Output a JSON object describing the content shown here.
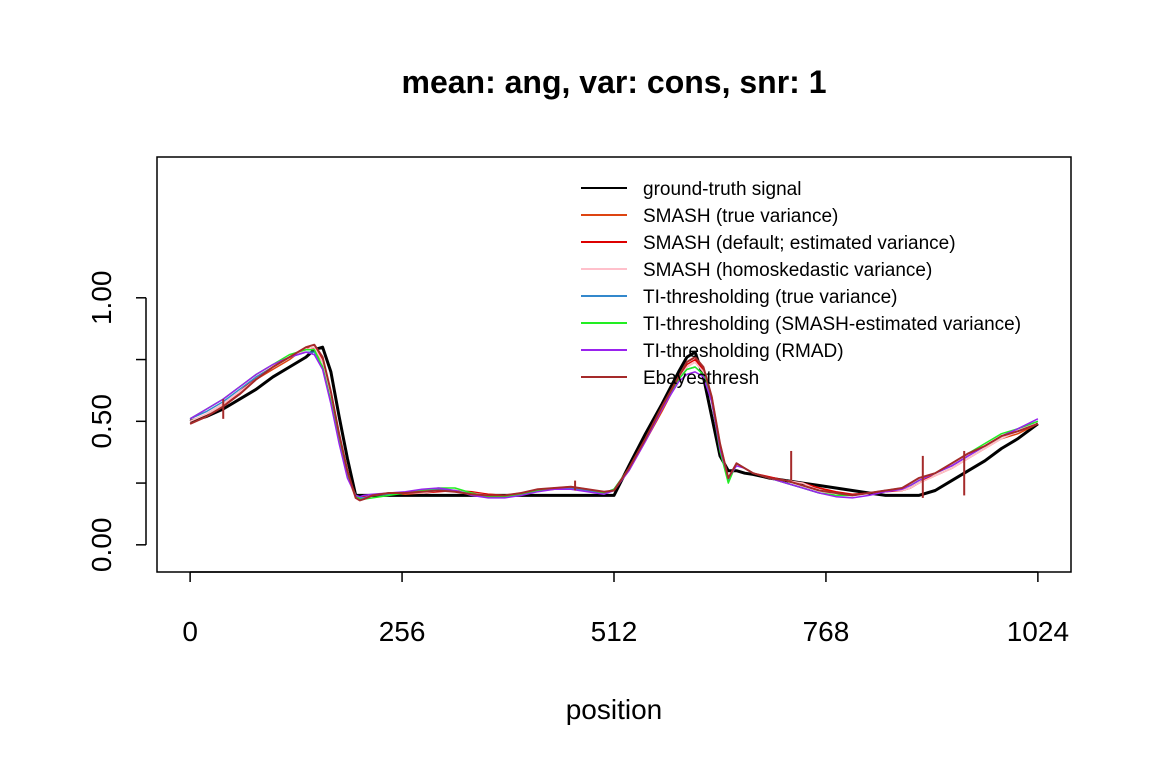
{
  "chart_data": {
    "type": "line",
    "title": "mean: ang, var: cons, snr: 1",
    "xlabel": "position",
    "ylabel": "",
    "xlim": [
      -40,
      1064
    ],
    "ylim": [
      -0.11,
      1.57
    ],
    "x_ticks": [
      0,
      256,
      512,
      768,
      1024
    ],
    "x_tick_labels": [
      "0",
      "256",
      "512",
      "768",
      "1024"
    ],
    "y_ticks": [
      0,
      0.25,
      0.5,
      0.75,
      1.0
    ],
    "y_tick_labels": [
      "0.00",
      "",
      "0.50",
      "",
      "1.00"
    ],
    "grid": false,
    "legend_position": "top-right",
    "x": [
      0,
      20,
      40,
      60,
      80,
      100,
      120,
      140,
      150,
      160,
      170,
      180,
      190,
      200,
      205,
      210,
      220,
      240,
      260,
      280,
      300,
      320,
      340,
      360,
      380,
      400,
      420,
      440,
      460,
      480,
      500,
      512,
      530,
      550,
      570,
      590,
      600,
      610,
      620,
      630,
      640,
      650,
      660,
      670,
      680,
      700,
      720,
      740,
      760,
      780,
      800,
      820,
      840,
      860,
      870,
      880,
      900,
      920,
      940,
      960,
      980,
      1000,
      1024
    ],
    "series": [
      {
        "name": "ground-truth signal",
        "color": "#000000",
        "width": 3,
        "values": [
          0.5,
          0.52,
          0.55,
          0.59,
          0.63,
          0.68,
          0.72,
          0.76,
          0.79,
          0.8,
          0.7,
          0.52,
          0.35,
          0.2,
          0.2,
          0.2,
          0.2,
          0.2,
          0.2,
          0.2,
          0.2,
          0.2,
          0.2,
          0.2,
          0.2,
          0.2,
          0.2,
          0.2,
          0.2,
          0.2,
          0.2,
          0.2,
          0.32,
          0.45,
          0.57,
          0.7,
          0.76,
          0.78,
          0.68,
          0.52,
          0.36,
          0.3,
          0.3,
          0.29,
          0.285,
          0.27,
          0.26,
          0.25,
          0.24,
          0.23,
          0.22,
          0.21,
          0.2,
          0.2,
          0.2,
          0.2,
          0.22,
          0.26,
          0.3,
          0.34,
          0.39,
          0.43,
          0.49
        ]
      },
      {
        "name": "SMASH (true variance)",
        "color": "#dd4411",
        "width": 1.5,
        "values": [
          0.5,
          0.53,
          0.57,
          0.62,
          0.67,
          0.71,
          0.75,
          0.8,
          0.79,
          0.74,
          0.6,
          0.43,
          0.28,
          0.19,
          0.185,
          0.19,
          0.2,
          0.21,
          0.205,
          0.21,
          0.22,
          0.22,
          0.21,
          0.205,
          0.2,
          0.21,
          0.22,
          0.23,
          0.23,
          0.22,
          0.21,
          0.22,
          0.3,
          0.42,
          0.54,
          0.67,
          0.72,
          0.74,
          0.7,
          0.6,
          0.4,
          0.26,
          0.33,
          0.31,
          0.29,
          0.27,
          0.26,
          0.25,
          0.23,
          0.21,
          0.2,
          0.21,
          0.22,
          0.22,
          0.23,
          0.25,
          0.28,
          0.31,
          0.35,
          0.39,
          0.43,
          0.45,
          0.49
        ]
      },
      {
        "name": "SMASH (default; estimated variance)",
        "color": "#dd0000",
        "width": 1.5,
        "values": [
          0.49,
          0.52,
          0.56,
          0.62,
          0.68,
          0.72,
          0.76,
          0.79,
          0.8,
          0.75,
          0.61,
          0.44,
          0.29,
          0.2,
          0.19,
          0.195,
          0.2,
          0.205,
          0.21,
          0.21,
          0.215,
          0.22,
          0.215,
          0.205,
          0.2,
          0.205,
          0.22,
          0.225,
          0.23,
          0.225,
          0.21,
          0.22,
          0.31,
          0.43,
          0.55,
          0.67,
          0.73,
          0.75,
          0.71,
          0.6,
          0.41,
          0.27,
          0.33,
          0.31,
          0.29,
          0.275,
          0.26,
          0.25,
          0.23,
          0.215,
          0.205,
          0.21,
          0.215,
          0.22,
          0.23,
          0.25,
          0.29,
          0.32,
          0.36,
          0.4,
          0.44,
          0.46,
          0.49
        ]
      },
      {
        "name": "SMASH (homoskedastic variance)",
        "color": "#ffc0cb",
        "width": 1.5,
        "values": [
          0.5,
          0.53,
          0.57,
          0.62,
          0.67,
          0.72,
          0.76,
          0.79,
          0.8,
          0.74,
          0.6,
          0.43,
          0.28,
          0.2,
          0.19,
          0.19,
          0.2,
          0.21,
          0.21,
          0.21,
          0.22,
          0.22,
          0.21,
          0.2,
          0.2,
          0.21,
          0.22,
          0.23,
          0.23,
          0.22,
          0.21,
          0.22,
          0.31,
          0.43,
          0.55,
          0.67,
          0.72,
          0.74,
          0.7,
          0.6,
          0.4,
          0.26,
          0.33,
          0.31,
          0.29,
          0.27,
          0.26,
          0.25,
          0.22,
          0.2,
          0.2,
          0.21,
          0.22,
          0.22,
          0.23,
          0.25,
          0.28,
          0.31,
          0.35,
          0.39,
          0.43,
          0.46,
          0.5
        ]
      },
      {
        "name": "TI-thresholding (true variance)",
        "color": "#3388cc",
        "width": 1.5,
        "values": [
          0.51,
          0.54,
          0.58,
          0.63,
          0.68,
          0.72,
          0.76,
          0.78,
          0.78,
          0.72,
          0.58,
          0.42,
          0.28,
          0.2,
          0.19,
          0.19,
          0.2,
          0.205,
          0.21,
          0.215,
          0.225,
          0.22,
          0.205,
          0.195,
          0.195,
          0.205,
          0.22,
          0.23,
          0.23,
          0.22,
          0.21,
          0.225,
          0.31,
          0.43,
          0.56,
          0.67,
          0.71,
          0.72,
          0.69,
          0.59,
          0.39,
          0.26,
          0.33,
          0.31,
          0.29,
          0.27,
          0.25,
          0.23,
          0.21,
          0.2,
          0.2,
          0.21,
          0.22,
          0.23,
          0.24,
          0.26,
          0.29,
          0.32,
          0.36,
          0.4,
          0.44,
          0.47,
          0.5
        ]
      },
      {
        "name": "TI-thresholding (SMASH-estimated variance)",
        "color": "#22ee22",
        "width": 1.5,
        "values": [
          0.51,
          0.55,
          0.59,
          0.64,
          0.69,
          0.73,
          0.77,
          0.79,
          0.79,
          0.72,
          0.58,
          0.42,
          0.28,
          0.2,
          0.185,
          0.185,
          0.19,
          0.2,
          0.21,
          0.22,
          0.23,
          0.23,
          0.21,
          0.195,
          0.195,
          0.205,
          0.22,
          0.23,
          0.235,
          0.225,
          0.21,
          0.225,
          0.31,
          0.43,
          0.56,
          0.67,
          0.71,
          0.72,
          0.69,
          0.58,
          0.38,
          0.25,
          0.33,
          0.31,
          0.29,
          0.27,
          0.25,
          0.23,
          0.21,
          0.2,
          0.2,
          0.21,
          0.22,
          0.23,
          0.24,
          0.26,
          0.29,
          0.33,
          0.37,
          0.41,
          0.45,
          0.47,
          0.5
        ]
      },
      {
        "name": "TI-thresholding (RMAD)",
        "color": "#9922ee",
        "width": 1.5,
        "values": [
          0.51,
          0.55,
          0.59,
          0.64,
          0.69,
          0.73,
          0.76,
          0.78,
          0.77,
          0.71,
          0.57,
          0.41,
          0.27,
          0.2,
          0.195,
          0.2,
          0.205,
          0.21,
          0.215,
          0.225,
          0.23,
          0.22,
          0.2,
          0.19,
          0.19,
          0.2,
          0.215,
          0.225,
          0.225,
          0.215,
          0.205,
          0.22,
          0.3,
          0.42,
          0.55,
          0.66,
          0.69,
          0.7,
          0.68,
          0.58,
          0.39,
          0.27,
          0.32,
          0.31,
          0.29,
          0.27,
          0.25,
          0.23,
          0.21,
          0.195,
          0.19,
          0.2,
          0.215,
          0.225,
          0.24,
          0.26,
          0.29,
          0.32,
          0.36,
          0.4,
          0.44,
          0.47,
          0.51
        ]
      },
      {
        "name": "Ebayesthresh",
        "color": "#a52a2a",
        "width": 2,
        "values": [
          0.49,
          0.52,
          0.56,
          0.61,
          0.67,
          0.72,
          0.76,
          0.8,
          0.81,
          0.76,
          0.62,
          0.45,
          0.3,
          0.19,
          0.18,
          0.185,
          0.2,
          0.21,
          0.21,
          0.215,
          0.22,
          0.215,
          0.205,
          0.2,
          0.2,
          0.21,
          0.225,
          0.23,
          0.235,
          0.225,
          0.215,
          0.22,
          0.31,
          0.43,
          0.56,
          0.68,
          0.74,
          0.76,
          0.72,
          0.6,
          0.41,
          0.27,
          0.33,
          0.31,
          0.29,
          0.27,
          0.26,
          0.24,
          0.22,
          0.21,
          0.2,
          0.21,
          0.22,
          0.23,
          0.25,
          0.27,
          0.29,
          0.33,
          0.37,
          0.4,
          0.44,
          0.46,
          0.49
        ],
        "spikes": [
          {
            "x": 40,
            "ymin": 0.51,
            "ymax": 0.59
          },
          {
            "x": 465,
            "ymin": 0.22,
            "ymax": 0.26
          },
          {
            "x": 726,
            "ymin": 0.26,
            "ymax": 0.38
          },
          {
            "x": 885,
            "ymin": 0.19,
            "ymax": 0.36
          },
          {
            "x": 935,
            "ymin": 0.2,
            "ymax": 0.38
          }
        ]
      }
    ]
  }
}
